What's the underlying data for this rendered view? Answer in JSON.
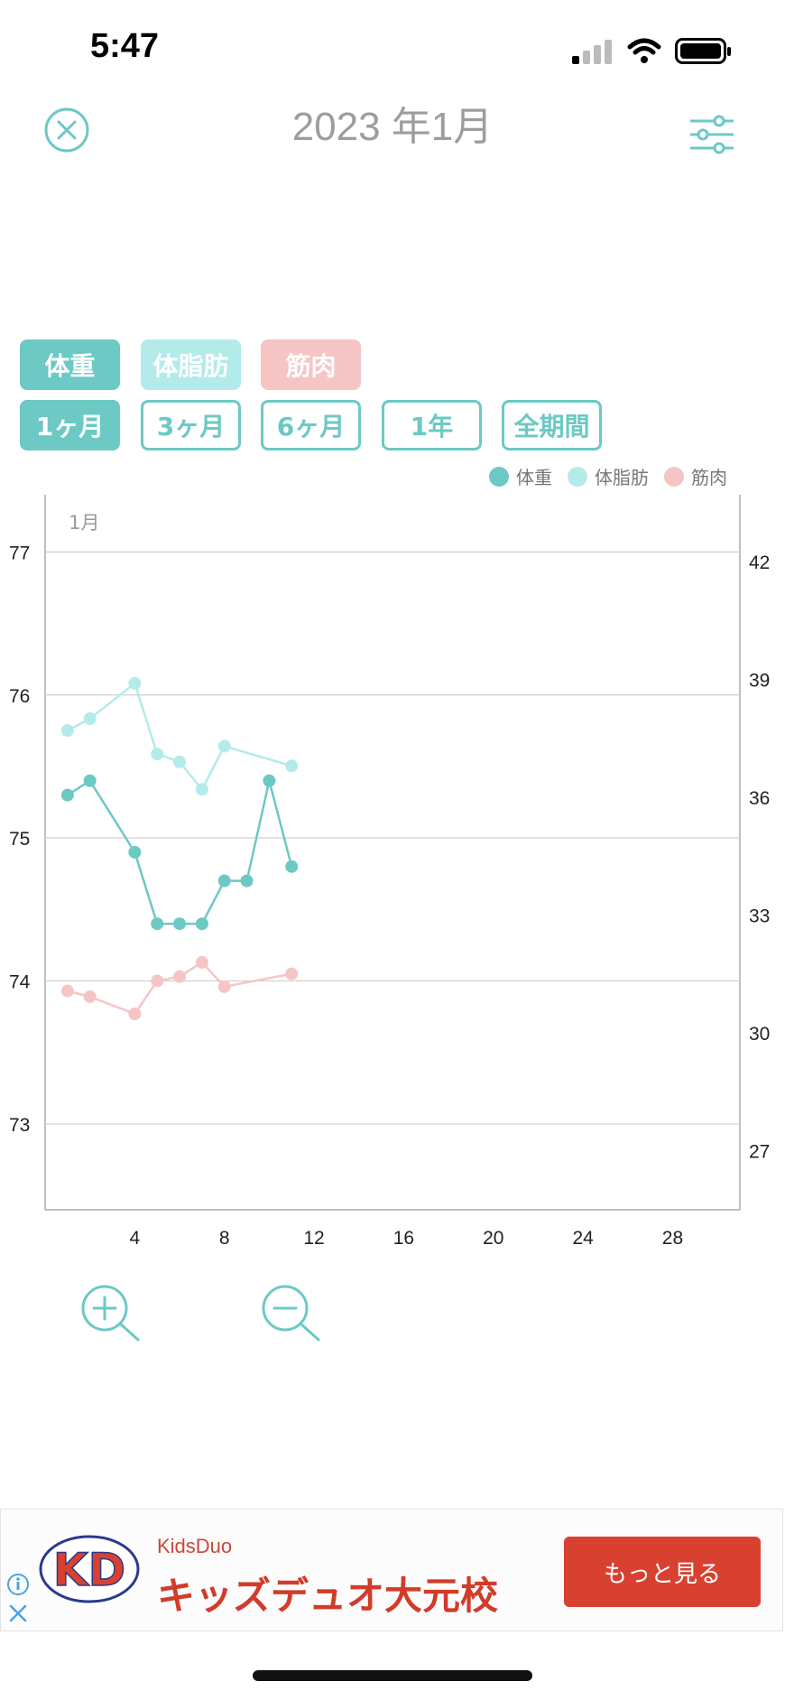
{
  "status_bar": {
    "time": "5:47"
  },
  "header": {
    "title": "2023 年1月",
    "close_icon": "close-circle-icon",
    "settings_icon": "sliders-icon"
  },
  "metric_buttons": [
    {
      "label": "体重",
      "color": "#6cc9c4",
      "active": true
    },
    {
      "label": "体脂肪",
      "color": "#b3ebea",
      "active": false
    },
    {
      "label": "筋肉",
      "color": "#f5c5c6",
      "active": false
    }
  ],
  "period_buttons": [
    {
      "label": "1ヶ月",
      "active": true
    },
    {
      "label": "3ヶ月",
      "active": false
    },
    {
      "label": "6ヶ月",
      "active": false
    },
    {
      "label": "1年",
      "active": false
    },
    {
      "label": "全期間",
      "active": false
    }
  ],
  "legend": [
    {
      "label": "体重",
      "color": "#6cc9c4"
    },
    {
      "label": "体脂肪",
      "color": "#b3ebea"
    },
    {
      "label": "筋肉",
      "color": "#f5c5c6"
    }
  ],
  "chart_data": {
    "type": "line",
    "month_label": "1月",
    "x_ticks": [
      4,
      8,
      12,
      16,
      20,
      24,
      28
    ],
    "xlim": [
      0,
      31
    ],
    "y_left_ticks": [
      73,
      74,
      75,
      76,
      77
    ],
    "y_left_lim": [
      72.4,
      77.4
    ],
    "y_right_ticks": [
      27,
      30,
      33,
      36,
      39,
      42
    ],
    "y_right_lim": [
      25.5,
      43.7
    ],
    "grid": true,
    "series": [
      {
        "name": "体重",
        "axis": "left",
        "color": "#6cc9c4",
        "x": [
          1,
          2,
          4,
          5,
          6,
          7,
          8,
          9,
          10,
          11
        ],
        "y": [
          75.3,
          75.4,
          74.9,
          74.4,
          74.4,
          74.4,
          74.7,
          74.7,
          75.4,
          74.8
        ]
      },
      {
        "name": "体脂肪",
        "axis": "right",
        "color": "#b3ebea",
        "x": [
          1,
          2,
          4,
          5,
          6,
          7,
          8,
          11
        ],
        "y": [
          37.7,
          38.0,
          38.9,
          37.1,
          36.9,
          36.2,
          37.3,
          36.8
        ]
      },
      {
        "name": "筋肉",
        "axis": "left",
        "color": "#f5c5c6",
        "x": [
          1,
          2,
          4,
          5,
          6,
          7,
          8,
          11
        ],
        "y": [
          73.93,
          73.89,
          73.77,
          74.0,
          74.03,
          74.13,
          73.96,
          74.05
        ]
      }
    ]
  },
  "zoom": {
    "zoom_in_icon": "zoom-in-icon",
    "zoom_out_icon": "zoom-out-icon"
  },
  "ad": {
    "logo_text": "KD",
    "brand": "KidsDuo",
    "title": "キッズデュオ大元校",
    "cta": "もっと見る",
    "info_icon": "info-icon",
    "close_icon": "close-icon"
  }
}
